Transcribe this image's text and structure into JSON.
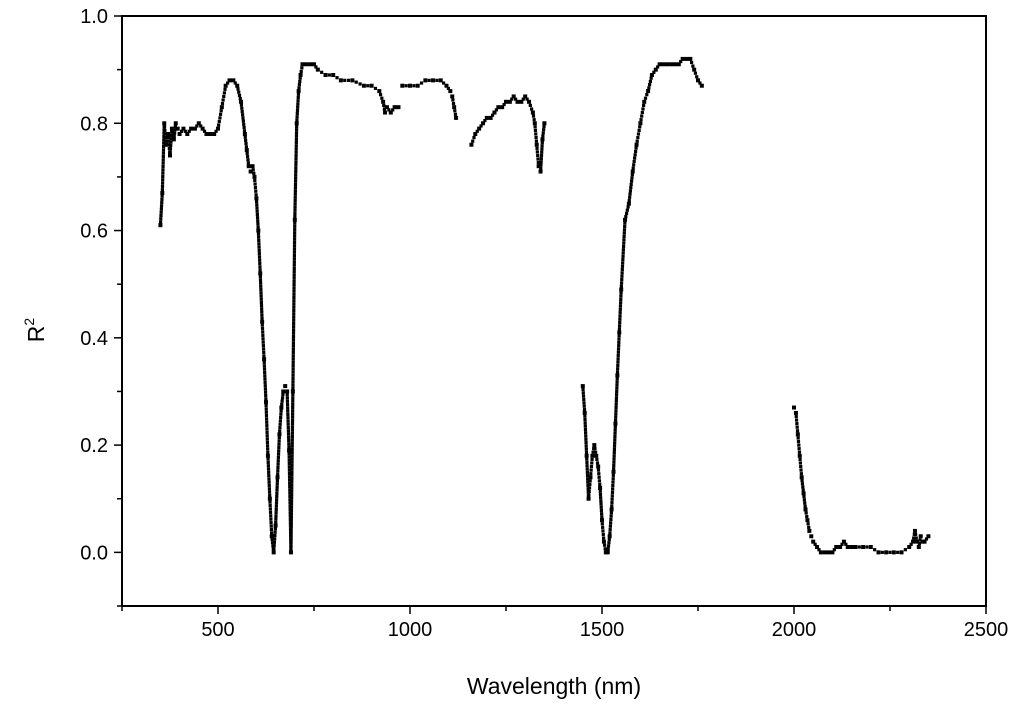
{
  "chart_data": {
    "type": "scatter",
    "xlabel": "Wavelength (nm)",
    "ylabel": "R",
    "ylabel_superscript": "2",
    "xlim": [
      250,
      2500
    ],
    "ylim": [
      -0.1,
      1.0
    ],
    "xticks": [
      500,
      1000,
      1500,
      2000,
      2500
    ],
    "xtick_labels": [
      "500",
      "1000",
      "1500",
      "2000",
      "2500"
    ],
    "yticks": [
      0.0,
      0.2,
      0.4,
      0.6,
      0.8,
      1.0
    ],
    "ytick_labels": [
      "0.0",
      "0.2",
      "0.4",
      "0.6",
      "0.8",
      "1.0"
    ],
    "grid": false,
    "legend": "none",
    "marker_color": "#000000",
    "series": [
      {
        "x": [
          350,
          355,
          360,
          365,
          370,
          375,
          380,
          385,
          390,
          395,
          400,
          410,
          420,
          430,
          440,
          450,
          460,
          470,
          480,
          490,
          500,
          510,
          520,
          530,
          540,
          550,
          560,
          570,
          575,
          580,
          585,
          590,
          595,
          600,
          605,
          610,
          615,
          620,
          625,
          630,
          635,
          640,
          645,
          650,
          655,
          660,
          665,
          670,
          675,
          680,
          685,
          690,
          695,
          700,
          705,
          710,
          715,
          720,
          730,
          740,
          750,
          760,
          780,
          800,
          820,
          850,
          880,
          900,
          920,
          930,
          935,
          940,
          950,
          960,
          970
        ],
        "y": [
          0.61,
          0.67,
          0.8,
          0.76,
          0.78,
          0.74,
          0.79,
          0.77,
          0.8,
          0.79,
          0.78,
          0.79,
          0.78,
          0.79,
          0.79,
          0.8,
          0.79,
          0.78,
          0.78,
          0.78,
          0.79,
          0.83,
          0.87,
          0.88,
          0.88,
          0.87,
          0.84,
          0.78,
          0.75,
          0.72,
          0.71,
          0.72,
          0.7,
          0.66,
          0.6,
          0.52,
          0.43,
          0.36,
          0.28,
          0.18,
          0.1,
          0.03,
          0.0,
          0.05,
          0.14,
          0.22,
          0.27,
          0.3,
          0.31,
          0.3,
          0.19,
          0.0,
          0.3,
          0.62,
          0.8,
          0.86,
          0.89,
          0.91,
          0.91,
          0.91,
          0.91,
          0.9,
          0.89,
          0.89,
          0.88,
          0.88,
          0.87,
          0.87,
          0.86,
          0.84,
          0.82,
          0.83,
          0.82,
          0.83,
          0.83
        ]
      },
      {
        "x": [
          980,
          1000,
          1020,
          1040,
          1060,
          1080,
          1095,
          1105,
          1110,
          1115,
          1120
        ],
        "y": [
          0.87,
          0.87,
          0.87,
          0.88,
          0.88,
          0.88,
          0.87,
          0.86,
          0.85,
          0.83,
          0.81
        ]
      },
      {
        "x": [
          1160,
          1170,
          1180,
          1190,
          1200,
          1210,
          1220,
          1230,
          1240,
          1250,
          1260,
          1270,
          1280,
          1290,
          1300,
          1310,
          1320,
          1325,
          1330,
          1335,
          1340,
          1345,
          1350
        ],
        "y": [
          0.76,
          0.78,
          0.79,
          0.8,
          0.81,
          0.81,
          0.82,
          0.83,
          0.83,
          0.84,
          0.84,
          0.85,
          0.84,
          0.84,
          0.85,
          0.84,
          0.82,
          0.8,
          0.76,
          0.72,
          0.71,
          0.77,
          0.8
        ]
      },
      {
        "x": [
          1450,
          1455,
          1460,
          1465,
          1470,
          1475,
          1480,
          1485,
          1490,
          1495,
          1500,
          1505,
          1510,
          1515,
          1520,
          1525,
          1530,
          1535,
          1540,
          1545,
          1550,
          1560,
          1570,
          1580,
          1590,
          1600,
          1610,
          1620,
          1630,
          1640,
          1650,
          1660,
          1670,
          1680,
          1690,
          1700,
          1710,
          1720,
          1730,
          1740,
          1750,
          1760
        ],
        "y": [
          0.31,
          0.26,
          0.18,
          0.1,
          0.14,
          0.18,
          0.2,
          0.18,
          0.16,
          0.12,
          0.06,
          0.02,
          0.0,
          0.0,
          0.03,
          0.08,
          0.15,
          0.24,
          0.33,
          0.41,
          0.49,
          0.62,
          0.65,
          0.71,
          0.76,
          0.8,
          0.84,
          0.86,
          0.89,
          0.9,
          0.91,
          0.91,
          0.91,
          0.91,
          0.91,
          0.91,
          0.92,
          0.92,
          0.92,
          0.9,
          0.88,
          0.87
        ]
      },
      {
        "x": [
          2000,
          2005,
          2010,
          2015,
          2020,
          2025,
          2030,
          2035,
          2040,
          2045,
          2050,
          2060,
          2070,
          2080,
          2090,
          2100,
          2110,
          2120,
          2130,
          2140,
          2150,
          2160,
          2180,
          2200,
          2220,
          2240,
          2260,
          2280,
          2300,
          2310,
          2315,
          2320,
          2325,
          2330,
          2335,
          2340,
          2350
        ],
        "y": [
          0.27,
          0.26,
          0.22,
          0.18,
          0.14,
          0.11,
          0.08,
          0.06,
          0.04,
          0.03,
          0.02,
          0.01,
          0.0,
          0.0,
          0.0,
          0.0,
          0.01,
          0.01,
          0.02,
          0.01,
          0.01,
          0.01,
          0.01,
          0.01,
          0.0,
          0.0,
          0.0,
          0.0,
          0.01,
          0.02,
          0.04,
          0.02,
          0.01,
          0.03,
          0.02,
          0.02,
          0.03
        ]
      }
    ]
  }
}
